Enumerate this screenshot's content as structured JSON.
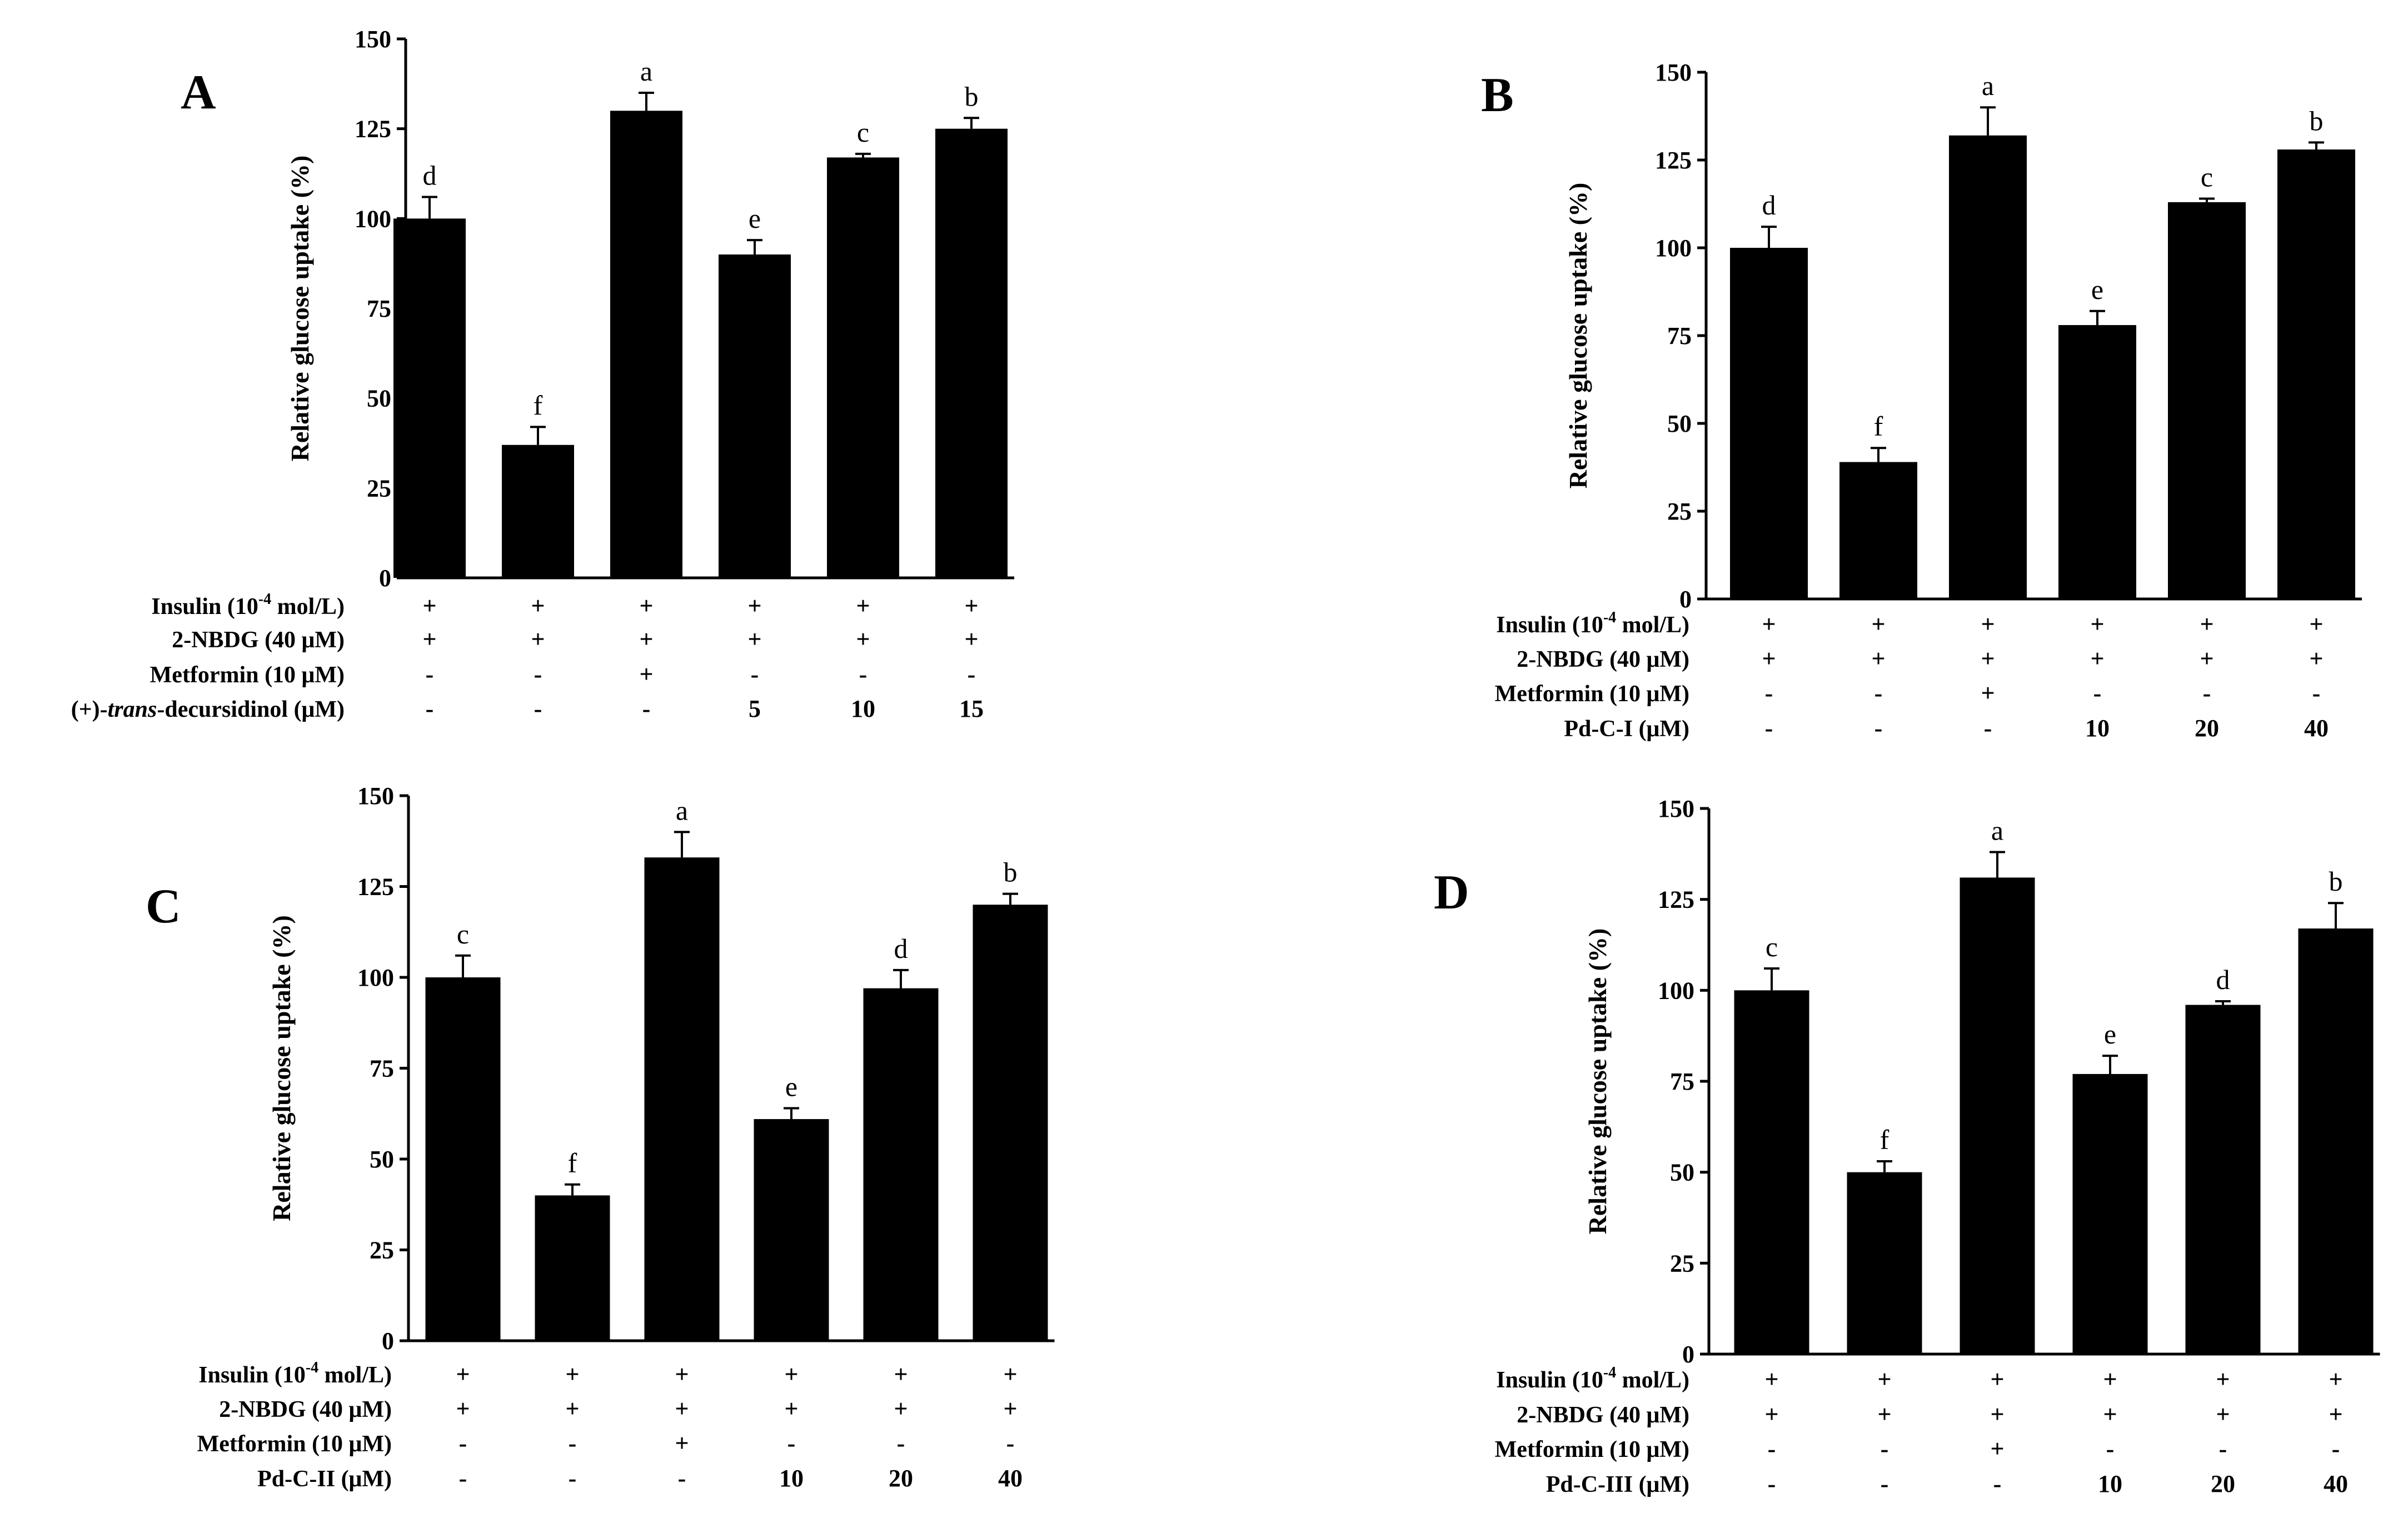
{
  "chart_data": [
    {
      "panel": "A",
      "type": "bar",
      "ylabel": "Relative glucose uptake (%)",
      "ylim": [
        0,
        150
      ],
      "yticks": [
        "0",
        "25",
        "50",
        "75",
        "100",
        "125",
        "150"
      ],
      "values": [
        100,
        37,
        130,
        90,
        117,
        125
      ],
      "errors": [
        6,
        5,
        5,
        4,
        1,
        3
      ],
      "significance": [
        "d",
        "f",
        "a",
        "e",
        "c",
        "b"
      ],
      "treatment_rows": [
        {
          "label_pre": "Insulin (10",
          "label_sup": "-4",
          "label_post": " mol/L)",
          "cells": [
            "+",
            "+",
            "+",
            "+",
            "+",
            "+"
          ]
        },
        {
          "label": "2-NBDG (40 μM)",
          "cells": [
            "+",
            "+",
            "+",
            "+",
            "+",
            "+"
          ]
        },
        {
          "label": "Metformin (10 μM)",
          "cells": [
            "-",
            "-",
            "+",
            "-",
            "-",
            "-"
          ]
        },
        {
          "label_pre": "(+)-",
          "label_italic": "trans",
          "label_post": "-decursidinol (μM)",
          "cells": [
            "-",
            "-",
            "-",
            "5",
            "10",
            "15"
          ]
        }
      ]
    },
    {
      "panel": "B",
      "type": "bar",
      "ylabel": "Relative glucose uptake (%)",
      "ylim": [
        0,
        150
      ],
      "yticks": [
        "0",
        "25",
        "50",
        "75",
        "100",
        "125",
        "150"
      ],
      "values": [
        100,
        39,
        132,
        78,
        113,
        128
      ],
      "errors": [
        6,
        4,
        8,
        4,
        1,
        2
      ],
      "significance": [
        "d",
        "f",
        "a",
        "e",
        "c",
        "b"
      ],
      "treatment_rows": [
        {
          "label_pre": "Insulin (10",
          "label_sup": "-4",
          "label_post": " mol/L)",
          "cells": [
            "+",
            "+",
            "+",
            "+",
            "+",
            "+"
          ]
        },
        {
          "label": "2-NBDG (40 μM)",
          "cells": [
            "+",
            "+",
            "+",
            "+",
            "+",
            "+"
          ]
        },
        {
          "label": "Metformin (10 μM)",
          "cells": [
            "-",
            "-",
            "+",
            "-",
            "-",
            "-"
          ]
        },
        {
          "label": "Pd-C-I (μM)",
          "cells": [
            "-",
            "-",
            "-",
            "10",
            "20",
            "40"
          ]
        }
      ]
    },
    {
      "panel": "C",
      "type": "bar",
      "ylabel": "Relative glucose uptake (%)",
      "ylim": [
        0,
        150
      ],
      "yticks": [
        "0",
        "25",
        "50",
        "75",
        "100",
        "125",
        "150"
      ],
      "values": [
        100,
        40,
        133,
        61,
        97,
        120
      ],
      "errors": [
        6,
        3,
        7,
        3,
        5,
        3
      ],
      "significance": [
        "c",
        "f",
        "a",
        "e",
        "d",
        "b"
      ],
      "treatment_rows": [
        {
          "label_pre": "Insulin (10",
          "label_sup": "-4",
          "label_post": " mol/L)",
          "cells": [
            "+",
            "+",
            "+",
            "+",
            "+",
            "+"
          ]
        },
        {
          "label": "2-NBDG (40 μM)",
          "cells": [
            "+",
            "+",
            "+",
            "+",
            "+",
            "+"
          ]
        },
        {
          "label": "Metformin (10 μM)",
          "cells": [
            "-",
            "-",
            "+",
            "-",
            "-",
            "-"
          ]
        },
        {
          "label": "Pd-C-II (μM)",
          "cells": [
            "-",
            "-",
            "-",
            "10",
            "20",
            "40"
          ]
        }
      ]
    },
    {
      "panel": "D",
      "type": "bar",
      "ylabel": "Relative glucose uptake (%)",
      "ylim": [
        0,
        150
      ],
      "yticks": [
        "0",
        "25",
        "50",
        "75",
        "100",
        "125",
        "150"
      ],
      "values": [
        100,
        50,
        131,
        77,
        96,
        117
      ],
      "errors": [
        6,
        3,
        7,
        5,
        1,
        7
      ],
      "significance": [
        "c",
        "f",
        "a",
        "e",
        "d",
        "b"
      ],
      "treatment_rows": [
        {
          "label_pre": "Insulin (10",
          "label_sup": "-4",
          "label_post": " mol/L)",
          "cells": [
            "+",
            "+",
            "+",
            "+",
            "+",
            "+"
          ]
        },
        {
          "label": "2-NBDG (40 μM)",
          "cells": [
            "+",
            "+",
            "+",
            "+",
            "+",
            "+"
          ]
        },
        {
          "label": "Metformin (10 μM)",
          "cells": [
            "-",
            "-",
            "+",
            "-",
            "-",
            "-"
          ]
        },
        {
          "label": "Pd-C-III (μM)",
          "cells": [
            "-",
            "-",
            "-",
            "10",
            "20",
            "40"
          ]
        }
      ]
    }
  ]
}
